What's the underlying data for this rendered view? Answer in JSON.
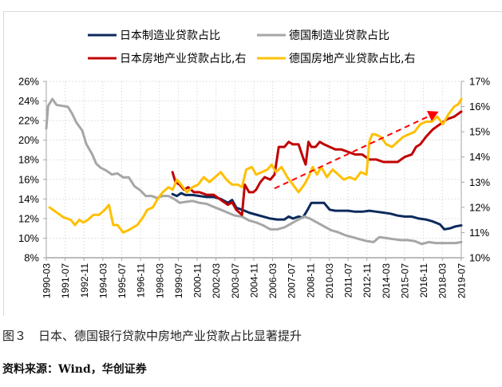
{
  "chart_data": {
    "type": "line",
    "title": "",
    "xlabel": "",
    "ylabel_left": "",
    "ylabel_right": "",
    "x_range": [
      1990.17,
      2019.5
    ],
    "y_left": {
      "range": [
        8,
        26
      ],
      "ticks": [
        "8%",
        "10%",
        "12%",
        "14%",
        "16%",
        "18%",
        "20%",
        "22%",
        "24%",
        "26%"
      ],
      "tick_values": [
        8,
        10,
        12,
        14,
        16,
        18,
        20,
        22,
        24,
        26
      ]
    },
    "y_right": {
      "range": [
        10,
        17
      ],
      "ticks": [
        "10%",
        "11%",
        "12%",
        "13%",
        "14%",
        "15%",
        "16%",
        "17%"
      ],
      "tick_values": [
        10,
        11,
        12,
        13,
        14,
        15,
        16,
        17
      ]
    },
    "x_ticks": [
      "1990-03",
      "1991-07",
      "1992-11",
      "1994-03",
      "1995-07",
      "1996-11",
      "1998-03",
      "1999-07",
      "2000-11",
      "2002-03",
      "2003-07",
      "2004-11",
      "2006-03",
      "2007-07",
      "2008-11",
      "2010-03",
      "2011-07",
      "2012-11",
      "2014-03",
      "2015-07",
      "2016-11",
      "2018-03",
      "2019-07"
    ],
    "grid": true,
    "legend_position": "top",
    "series": [
      {
        "name": "日本制造业贷款占比",
        "axis": "left",
        "color": "#0d2a5c",
        "x": [
          1999.09,
          1999.4,
          1999.7,
          2000.0,
          2000.5,
          2001.0,
          2001.5,
          2002.0,
          2002.5,
          2003.0,
          2003.3,
          2003.6,
          2004.0,
          2004.5,
          2005.0,
          2005.5,
          2006.0,
          2006.5,
          2007.0,
          2007.3,
          2007.6,
          2008.0,
          2008.3,
          2008.6,
          2008.9,
          2009.3,
          2009.8,
          2010.2,
          2010.6,
          2011.0,
          2011.5,
          2012.0,
          2012.5,
          2013.0,
          2013.5,
          2014.0,
          2014.5,
          2015.0,
          2015.5,
          2016.0,
          2016.5,
          2017.0,
          2017.5,
          2018.0,
          2018.3,
          2018.7,
          2019.1,
          2019.5
        ],
        "y": [
          14.5,
          14.3,
          14.6,
          14.4,
          14.4,
          14.3,
          14.2,
          14.2,
          14.0,
          13.6,
          13.9,
          13.1,
          12.9,
          12.6,
          12.4,
          12.2,
          12.0,
          11.9,
          11.9,
          12.2,
          12.0,
          12.2,
          12.1,
          12.8,
          13.6,
          13.6,
          13.6,
          12.9,
          12.8,
          12.8,
          12.8,
          12.7,
          12.7,
          12.8,
          12.7,
          12.6,
          12.5,
          12.3,
          12.2,
          12.2,
          12.0,
          11.9,
          11.7,
          11.4,
          10.9,
          11.0,
          11.2,
          11.3
        ]
      },
      {
        "name": "德国制造业贷款占比",
        "axis": "left",
        "color": "#a6a6a6",
        "x": [
          1990.17,
          1990.3,
          1990.6,
          1990.9,
          1991.3,
          1991.7,
          1992.0,
          1992.3,
          1992.7,
          1993.0,
          1993.4,
          1993.7,
          1994.0,
          1994.4,
          1994.8,
          1995.2,
          1995.6,
          1996.0,
          1996.4,
          1996.8,
          1997.2,
          1997.6,
          1998.0,
          1998.4,
          1998.8,
          1999.2,
          1999.6,
          2000.0,
          2000.5,
          2001.0,
          2001.5,
          2002.0,
          2002.5,
          2003.0,
          2003.5,
          2004.0,
          2004.5,
          2005.0,
          2005.5,
          2006.0,
          2006.5,
          2007.0,
          2007.5,
          2008.0,
          2008.4,
          2008.8,
          2009.3,
          2009.8,
          2010.3,
          2010.8,
          2011.3,
          2011.8,
          2012.3,
          2012.8,
          2013.3,
          2013.7,
          2014.2,
          2014.7,
          2015.2,
          2015.7,
          2016.2,
          2016.7,
          2017.2,
          2017.7,
          2018.2,
          2018.7,
          2019.1,
          2019.5
        ],
        "y": [
          21.2,
          23.5,
          24.2,
          23.6,
          23.5,
          23.4,
          22.7,
          21.8,
          21.0,
          19.6,
          18.6,
          17.6,
          17.2,
          16.9,
          16.5,
          16.6,
          16.2,
          16.2,
          15.3,
          14.9,
          14.3,
          14.3,
          14.1,
          14.3,
          14.3,
          14.0,
          13.6,
          13.7,
          13.8,
          13.6,
          13.5,
          13.2,
          12.9,
          12.6,
          12.3,
          12.2,
          11.8,
          11.6,
          11.3,
          10.9,
          10.9,
          11.1,
          11.5,
          11.9,
          12.2,
          12.0,
          11.6,
          11.2,
          10.8,
          10.6,
          10.3,
          10.1,
          9.9,
          9.7,
          9.6,
          10.1,
          10.0,
          9.9,
          9.8,
          9.8,
          9.7,
          9.4,
          9.6,
          9.5,
          9.5,
          9.5,
          9.5,
          9.6
        ]
      },
      {
        "name": "日本房地产业贷款占比,右",
        "axis": "right",
        "color": "#c00000",
        "x": [
          1999.09,
          1999.3,
          1999.6,
          1999.9,
          2000.2,
          2000.6,
          2001.0,
          2001.5,
          2002.0,
          2002.5,
          2003.0,
          2003.3,
          2003.6,
          2004.0,
          2004.2,
          2004.5,
          2004.8,
          2005.0,
          2005.3,
          2005.6,
          2006.0,
          2006.3,
          2006.6,
          2007.0,
          2007.3,
          2007.6,
          2008.0,
          2008.3,
          2008.5,
          2008.7,
          2008.9,
          2009.2,
          2009.5,
          2009.8,
          2010.2,
          2010.6,
          2011.0,
          2011.5,
          2012.0,
          2012.5,
          2013.0,
          2013.5,
          2014.0,
          2014.5,
          2015.0,
          2015.5,
          2016.0,
          2016.3,
          2016.6,
          2017.0,
          2017.5,
          2018.0,
          2018.5,
          2019.0,
          2019.5
        ],
        "y": [
          13.4,
          13.0,
          12.9,
          12.7,
          12.8,
          12.6,
          12.6,
          12.5,
          12.5,
          12.3,
          12.1,
          12.2,
          11.9,
          11.7,
          12.9,
          12.6,
          12.6,
          12.7,
          13.0,
          13.2,
          13.1,
          13.3,
          14.4,
          14.4,
          14.6,
          14.5,
          14.5,
          14.0,
          13.7,
          14.6,
          14.4,
          14.4,
          14.6,
          14.5,
          14.4,
          14.3,
          14.3,
          14.2,
          14.1,
          14.1,
          13.9,
          13.9,
          13.8,
          13.8,
          13.8,
          14.0,
          14.1,
          14.4,
          14.5,
          14.8,
          15.1,
          15.3,
          15.5,
          15.6,
          15.8
        ]
      },
      {
        "name": "德国房地产业贷款占比,右",
        "axis": "right",
        "color": "#ffc000",
        "x": [
          1990.4,
          1990.9,
          1991.4,
          1991.9,
          1992.2,
          1992.5,
          1992.8,
          1993.1,
          1993.5,
          1993.9,
          1994.3,
          1994.6,
          1994.9,
          1995.2,
          1995.6,
          1996.0,
          1996.3,
          1996.6,
          1997.0,
          1997.3,
          1997.7,
          1998.0,
          1998.4,
          1998.8,
          1999.1,
          1999.4,
          1999.7,
          2000.1,
          2000.5,
          2000.9,
          2001.3,
          2001.7,
          2002.1,
          2002.5,
          2002.9,
          2003.3,
          2003.7,
          2004.0,
          2004.3,
          2004.7,
          2005.0,
          2005.4,
          2005.8,
          2006.1,
          2006.4,
          2006.8,
          2007.2,
          2007.6,
          2008.0,
          2008.4,
          2008.7,
          2009.0,
          2009.3,
          2009.6,
          2010.0,
          2010.4,
          2010.8,
          2011.2,
          2011.6,
          2012.0,
          2012.4,
          2012.8,
          2013.0,
          2013.2,
          2013.4,
          2013.8,
          2014.2,
          2014.6,
          2015.0,
          2015.4,
          2015.8,
          2016.2,
          2016.6,
          2017.0,
          2017.4,
          2017.8,
          2018.2,
          2018.6,
          2019.0,
          2019.3,
          2019.5
        ],
        "y": [
          12.0,
          11.8,
          11.6,
          11.5,
          11.3,
          11.5,
          11.4,
          11.5,
          11.7,
          11.7,
          11.9,
          12.1,
          11.3,
          11.3,
          11.0,
          11.1,
          11.2,
          11.3,
          11.6,
          11.9,
          12.0,
          12.3,
          12.6,
          12.8,
          12.7,
          13.1,
          12.9,
          12.6,
          12.8,
          12.9,
          13.2,
          13.0,
          13.2,
          13.4,
          13.1,
          12.9,
          12.9,
          12.8,
          13.5,
          13.6,
          13.3,
          13.4,
          13.5,
          13.7,
          13.4,
          13.6,
          13.2,
          12.9,
          12.6,
          12.9,
          13.2,
          13.6,
          13.3,
          13.6,
          13.2,
          13.5,
          13.3,
          13.1,
          13.2,
          13.1,
          13.4,
          13.3,
          14.6,
          14.9,
          14.9,
          14.8,
          14.5,
          14.4,
          14.6,
          14.8,
          14.9,
          15.0,
          15.3,
          15.4,
          15.4,
          15.6,
          15.3,
          15.7,
          16.0,
          16.1,
          16.3
        ]
      }
    ],
    "annotation": {
      "type": "dashed-arrow",
      "color": "#ff0000",
      "from": {
        "x": 2006.3,
        "y_right": 12.75
      },
      "to": {
        "x": 2017.9,
        "y_right": 15.8
      }
    }
  },
  "caption": {
    "figure_label": "图３",
    "text": "日本、德国银行贷款中房地产业贷款占比显著提升"
  },
  "source": "资料来源：Wind，华创证券"
}
